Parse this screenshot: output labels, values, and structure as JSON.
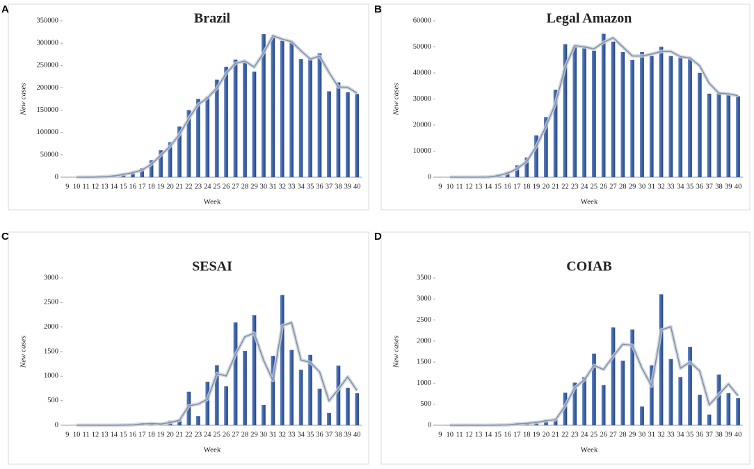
{
  "chart_data": [
    {
      "type": "bar",
      "panel_label": "A",
      "title": "Brazil",
      "xlabel": "Week",
      "ylabel": "New cases",
      "categories": [
        9,
        10,
        11,
        12,
        13,
        14,
        15,
        16,
        17,
        18,
        19,
        20,
        21,
        22,
        23,
        24,
        25,
        26,
        27,
        28,
        29,
        30,
        31,
        32,
        33,
        34,
        35,
        36,
        37,
        38,
        39,
        40
      ],
      "series": [
        {
          "type": "bar",
          "color": "#3c62a8",
          "values": [
            0,
            0,
            0,
            500,
            1500,
            4000,
            8000,
            12000,
            20000,
            38000,
            60000,
            78000,
            113000,
            150000,
            175000,
            180000,
            218000,
            247000,
            263000,
            257000,
            236000,
            320000,
            313000,
            305000,
            302000,
            264000,
            265000,
            277000,
            192000,
            212000,
            190000,
            186000
          ]
        },
        {
          "type": "line",
          "color": "#8393ab",
          "values": [
            null,
            0,
            0,
            250,
            1000,
            2750,
            6000,
            10000,
            16000,
            29000,
            49000,
            69000,
            95500,
            131500,
            162500,
            177500,
            199000,
            232500,
            255000,
            260000,
            246500,
            278000,
            316500,
            309000,
            303500,
            283000,
            264500,
            271000,
            234500,
            202000,
            201000,
            188000
          ]
        }
      ],
      "ylim": [
        0,
        350000
      ],
      "yticks": [
        0,
        50000,
        100000,
        150000,
        200000,
        250000,
        300000,
        350000
      ]
    },
    {
      "type": "bar",
      "panel_label": "B",
      "title": "Legal Amazon",
      "xlabel": "Week",
      "ylabel": "New cases",
      "categories": [
        9,
        10,
        11,
        12,
        13,
        14,
        15,
        16,
        17,
        18,
        19,
        20,
        21,
        22,
        23,
        24,
        25,
        26,
        27,
        28,
        29,
        30,
        31,
        32,
        33,
        34,
        35,
        36,
        37,
        38,
        39,
        40
      ],
      "series": [
        {
          "type": "bar",
          "color": "#3c62a8",
          "values": [
            0,
            0,
            0,
            0,
            0,
            100,
            1000,
            2000,
            4500,
            7500,
            16000,
            23000,
            33500,
            51000,
            50000,
            50000,
            48500,
            55000,
            52000,
            48000,
            45000,
            48000,
            46500,
            50000,
            46500,
            46000,
            45500,
            40000,
            32000,
            32500,
            31500,
            31000
          ]
        },
        {
          "type": "line",
          "color": "#8393ab",
          "values": [
            null,
            0,
            0,
            0,
            0,
            50,
            550,
            1500,
            3250,
            6000,
            11750,
            19500,
            28250,
            42250,
            50500,
            50000,
            49250,
            51750,
            53500,
            50000,
            46500,
            46500,
            47250,
            48250,
            48250,
            46250,
            45750,
            42750,
            36000,
            32250,
            32000,
            31250
          ]
        }
      ],
      "ylim": [
        0,
        60000
      ],
      "yticks": [
        0,
        10000,
        20000,
        30000,
        40000,
        50000,
        60000
      ]
    },
    {
      "type": "bar",
      "panel_label": "C",
      "title": "SESAI",
      "xlabel": "Week",
      "ylabel": "New cases",
      "categories": [
        9,
        10,
        11,
        12,
        13,
        14,
        15,
        16,
        17,
        18,
        19,
        20,
        21,
        22,
        23,
        24,
        25,
        26,
        27,
        28,
        29,
        30,
        31,
        32,
        33,
        34,
        35,
        36,
        37,
        38,
        39,
        40
      ],
      "series": [
        {
          "type": "bar",
          "color": "#3c62a8",
          "values": [
            0,
            0,
            0,
            0,
            0,
            0,
            5,
            10,
            40,
            30,
            20,
            90,
            110,
            680,
            180,
            880,
            1220,
            790,
            2090,
            1510,
            2240,
            410,
            1410,
            2650,
            1530,
            1130,
            1430,
            740,
            250,
            1210,
            760,
            650
          ]
        },
        {
          "type": "line",
          "color": "#8393ab",
          "values": [
            null,
            0,
            0,
            0,
            0,
            0,
            2.5,
            7.5,
            25,
            35,
            25,
            55,
            100,
            395,
            430,
            530,
            1050,
            1005,
            1440,
            1800,
            1875,
            1325,
            910,
            2030,
            2090,
            1330,
            1280,
            1085,
            495,
            730,
            985,
            705
          ]
        }
      ],
      "ylim": [
        0,
        3000
      ],
      "yticks": [
        0,
        500,
        1000,
        1500,
        2000,
        2500,
        3000
      ]
    },
    {
      "type": "bar",
      "panel_label": "D",
      "title": "COIAB",
      "xlabel": "Week",
      "ylabel": "New cases",
      "categories": [
        9,
        10,
        11,
        12,
        13,
        14,
        15,
        16,
        17,
        18,
        19,
        20,
        21,
        22,
        23,
        24,
        25,
        26,
        27,
        28,
        29,
        30,
        31,
        32,
        33,
        34,
        35,
        36,
        37,
        38,
        39,
        40
      ],
      "series": [
        {
          "type": "bar",
          "color": "#3c62a8",
          "values": [
            0,
            0,
            0,
            0,
            0,
            0,
            5,
            10,
            50,
            40,
            90,
            120,
            140,
            770,
            1010,
            1140,
            1700,
            950,
            2320,
            1530,
            2270,
            440,
            1420,
            3110,
            1570,
            1140,
            1860,
            720,
            250,
            1200,
            760,
            640
          ]
        },
        {
          "type": "line",
          "color": "#8393ab",
          "values": [
            null,
            0,
            0,
            0,
            0,
            0,
            2.5,
            7.5,
            30,
            45,
            65,
            105,
            130,
            455,
            890,
            1075,
            1420,
            1325,
            1635,
            1925,
            1900,
            1355,
            930,
            2265,
            2340,
            1355,
            1500,
            1290,
            485,
            725,
            980,
            700
          ]
        }
      ],
      "ylim": [
        0,
        3500
      ],
      "yticks": [
        0,
        500,
        1000,
        1500,
        2000,
        2500,
        3000,
        3500
      ]
    }
  ]
}
